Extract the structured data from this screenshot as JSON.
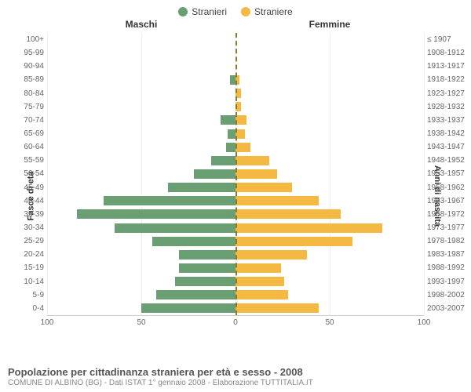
{
  "legend": {
    "male": {
      "label": "Stranieri",
      "color": "#6a9e73"
    },
    "female": {
      "label": "Straniere",
      "color": "#f4b942"
    }
  },
  "headers": {
    "male": "Maschi",
    "female": "Femmine"
  },
  "axis_labels": {
    "left": "Fasce di età",
    "right": "Anni di nascita"
  },
  "chart": {
    "type": "population-pyramid",
    "xmax": 100,
    "xticks_left": [
      100,
      50,
      0
    ],
    "xticks_right": [
      50,
      100
    ],
    "background_color": "#ffffff",
    "grid_color": "#eeeeee",
    "center_line_color": "#8a7a2a",
    "bar_height_ratio": 0.7,
    "rows": [
      {
        "age": "100+",
        "birth": "≤ 1907",
        "m": 0,
        "f": 0
      },
      {
        "age": "95-99",
        "birth": "1908-1912",
        "m": 0,
        "f": 0
      },
      {
        "age": "90-94",
        "birth": "1913-1917",
        "m": 0,
        "f": 0
      },
      {
        "age": "85-89",
        "birth": "1918-1922",
        "m": 3,
        "f": 2
      },
      {
        "age": "80-84",
        "birth": "1923-1927",
        "m": 0,
        "f": 3
      },
      {
        "age": "75-79",
        "birth": "1928-1932",
        "m": 0,
        "f": 3
      },
      {
        "age": "70-74",
        "birth": "1933-1937",
        "m": 8,
        "f": 6
      },
      {
        "age": "65-69",
        "birth": "1938-1942",
        "m": 4,
        "f": 5
      },
      {
        "age": "60-64",
        "birth": "1943-1947",
        "m": 5,
        "f": 8
      },
      {
        "age": "55-59",
        "birth": "1948-1952",
        "m": 13,
        "f": 18
      },
      {
        "age": "50-54",
        "birth": "1953-1957",
        "m": 22,
        "f": 22
      },
      {
        "age": "45-49",
        "birth": "1958-1962",
        "m": 36,
        "f": 30
      },
      {
        "age": "40-44",
        "birth": "1963-1967",
        "m": 70,
        "f": 44
      },
      {
        "age": "35-39",
        "birth": "1968-1972",
        "m": 84,
        "f": 56
      },
      {
        "age": "30-34",
        "birth": "1973-1977",
        "m": 64,
        "f": 78
      },
      {
        "age": "25-29",
        "birth": "1978-1982",
        "m": 44,
        "f": 62
      },
      {
        "age": "20-24",
        "birth": "1983-1987",
        "m": 30,
        "f": 38
      },
      {
        "age": "15-19",
        "birth": "1988-1992",
        "m": 30,
        "f": 24
      },
      {
        "age": "10-14",
        "birth": "1993-1997",
        "m": 32,
        "f": 26
      },
      {
        "age": "5-9",
        "birth": "1998-2002",
        "m": 42,
        "f": 28
      },
      {
        "age": "0-4",
        "birth": "2003-2007",
        "m": 50,
        "f": 44
      }
    ]
  },
  "footer": {
    "title": "Popolazione per cittadinanza straniera per età e sesso - 2008",
    "subtitle": "COMUNE DI ALBINO (BG) - Dati ISTAT 1° gennaio 2008 - Elaborazione TUTTITALIA.IT"
  }
}
